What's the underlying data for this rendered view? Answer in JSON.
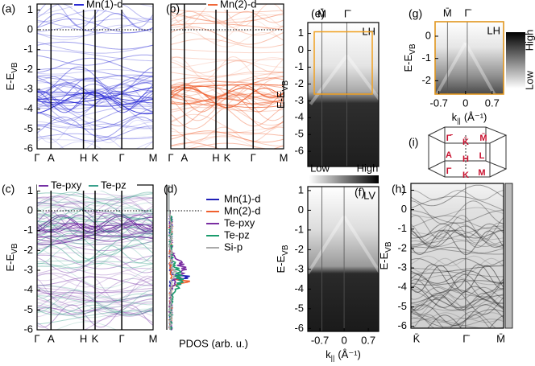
{
  "chart_data": [
    {
      "type": "band-structure",
      "label": "(a)",
      "ylabel": "E-E",
      "ylabel_sub": "VB",
      "ylim": [
        -6,
        1.3
      ],
      "yticks": [
        1,
        0,
        -1,
        -2,
        -3,
        -4,
        -5,
        -6
      ],
      "kpoints": [
        "Γ",
        "A",
        "H",
        "K",
        "Γ",
        "M"
      ],
      "series": [
        {
          "name": "Mn(1)-d",
          "color": "#2b2bd6"
        }
      ]
    },
    {
      "type": "band-structure",
      "label": "(b)",
      "ylim": [
        -6,
        1.3
      ],
      "kpoints": [
        "Γ",
        "A",
        "H",
        "K",
        "Γ",
        "M"
      ],
      "series": [
        {
          "name": "Mn(2)-d",
          "color": "#f0683a"
        }
      ]
    },
    {
      "type": "band-structure",
      "label": "(c)",
      "ylabel": "E-E",
      "ylabel_sub": "VB",
      "ylim": [
        -6,
        1.3
      ],
      "yticks": [
        1,
        0,
        -1,
        -2,
        -3,
        -4,
        -5,
        -6
      ],
      "kpoints": [
        "Γ",
        "A",
        "H",
        "K",
        "Γ",
        "M"
      ],
      "series": [
        {
          "name": "Te-pxy",
          "color": "#7430a4"
        },
        {
          "name": "Te-pz",
          "color": "#3aa08c"
        }
      ]
    },
    {
      "type": "pdos",
      "label": "(d)",
      "xlabel": "PDOS (arb. u.)",
      "ylim": [
        -6,
        1.3
      ],
      "series": [
        {
          "name": "Mn(1)-d",
          "color": "#2020b8"
        },
        {
          "name": "Mn(2)-d",
          "color": "#f0602e"
        },
        {
          "name": "Te-pxy",
          "color": "#7a2ea2"
        },
        {
          "name": "Te-pz",
          "color": "#1a9c6c"
        },
        {
          "name": "Si-p",
          "color": "#aaaaaa"
        }
      ]
    },
    {
      "type": "arpes",
      "label": "(e)",
      "polarization": "LH",
      "ylabel": "E-E",
      "ylabel_sub": "VB",
      "ylim": [
        -6.9,
        1.65
      ],
      "yticks": [
        1,
        0,
        -1,
        -2,
        -3,
        -4,
        -5,
        -6
      ],
      "kpoints": [
        "M̄",
        "Γ̄"
      ]
    },
    {
      "type": "colorbar",
      "low": "Low",
      "high": "High"
    },
    {
      "type": "arpes",
      "label": "(f)",
      "polarization": "LV",
      "ylabel": "E-E",
      "ylabel_sub": "VB",
      "ylim": [
        -6.15,
        1.2
      ],
      "yticks": [
        1,
        0,
        -1,
        -2,
        -3,
        -4,
        -5,
        -6
      ],
      "xlim": [
        -1.05,
        1.0
      ],
      "xticks": [
        -0.7,
        0,
        0.7
      ],
      "xlabel": "k",
      "xlabel_sub": "||",
      "xlabel_unit": "(Å⁻¹)"
    },
    {
      "type": "arpes",
      "label": "(g)",
      "polarization": "LH",
      "ylabel": "E-E",
      "ylabel_sub": "VB",
      "ylim": [
        -2.6,
        0.65
      ],
      "yticks": [
        0,
        -1,
        -2
      ],
      "xlim": [
        -0.8,
        1.0
      ],
      "xticks": [
        -0.7,
        0,
        0.7
      ],
      "xlabel": "k",
      "xlabel_sub": "||",
      "xlabel_unit": "(Å⁻¹)",
      "kpoints": [
        "M̄",
        "Γ̄"
      ]
    },
    {
      "type": "colorbar",
      "high": "High",
      "low": "Low"
    },
    {
      "type": "diagram",
      "label": "(i)",
      "points": [
        "Γ̄",
        "K̄",
        "M̄",
        "A",
        "H",
        "L",
        "Γ",
        "K",
        "M"
      ]
    },
    {
      "type": "calculation",
      "label": "(h)",
      "ylabel": "E-E",
      "ylabel_sub": "VB",
      "ylim": [
        -6.1,
        1.35
      ],
      "yticks": [
        1,
        0,
        -1,
        -2,
        -3,
        -4,
        -5,
        -6
      ],
      "kpoints": [
        "K̄",
        "Γ̄",
        "M̄"
      ]
    }
  ]
}
